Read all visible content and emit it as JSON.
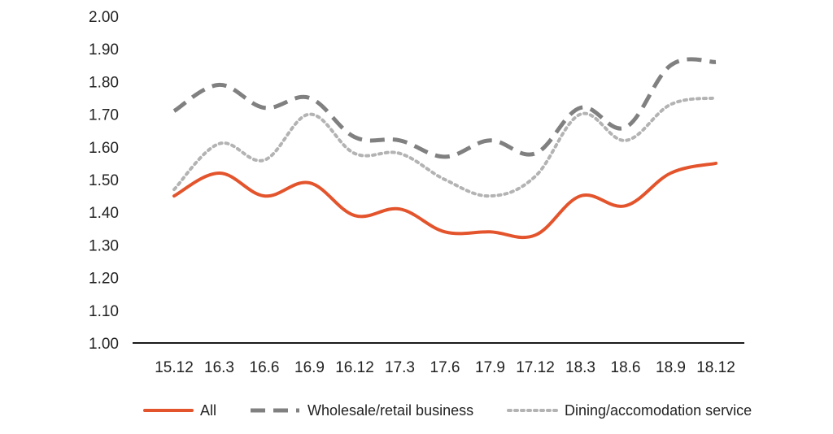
{
  "chart_data": {
    "type": "line",
    "title": "",
    "xlabel": "",
    "ylabel": "",
    "ylim": [
      1.0,
      2.0
    ],
    "y_ticks": [
      "1.00",
      "1.10",
      "1.20",
      "1.30",
      "1.40",
      "1.50",
      "1.60",
      "1.70",
      "1.80",
      "1.90",
      "2.00"
    ],
    "categories": [
      "15.12",
      "16.3",
      "16.6",
      "16.9",
      "16.12",
      "17.3",
      "17.6",
      "17.9",
      "17.12",
      "18.3",
      "18.6",
      "18.9",
      "18.12"
    ],
    "grid": false,
    "legend_position": "bottom",
    "series": [
      {
        "name": "All",
        "color": "#e3542c",
        "style": "solid",
        "values": [
          1.45,
          1.52,
          1.45,
          1.49,
          1.39,
          1.41,
          1.34,
          1.34,
          1.33,
          1.45,
          1.42,
          1.52,
          1.55
        ]
      },
      {
        "name": "Wholesale/retail business",
        "color": "#808080",
        "style": "dashed",
        "values": [
          1.71,
          1.79,
          1.72,
          1.75,
          1.63,
          1.62,
          1.57,
          1.62,
          1.58,
          1.72,
          1.66,
          1.85,
          1.86
        ]
      },
      {
        "name": "Dining/accomodation service",
        "color": "#b3b3b3",
        "style": "dotted",
        "values": [
          1.47,
          1.61,
          1.56,
          1.7,
          1.58,
          1.58,
          1.5,
          1.45,
          1.51,
          1.7,
          1.62,
          1.73,
          1.75
        ]
      }
    ]
  }
}
